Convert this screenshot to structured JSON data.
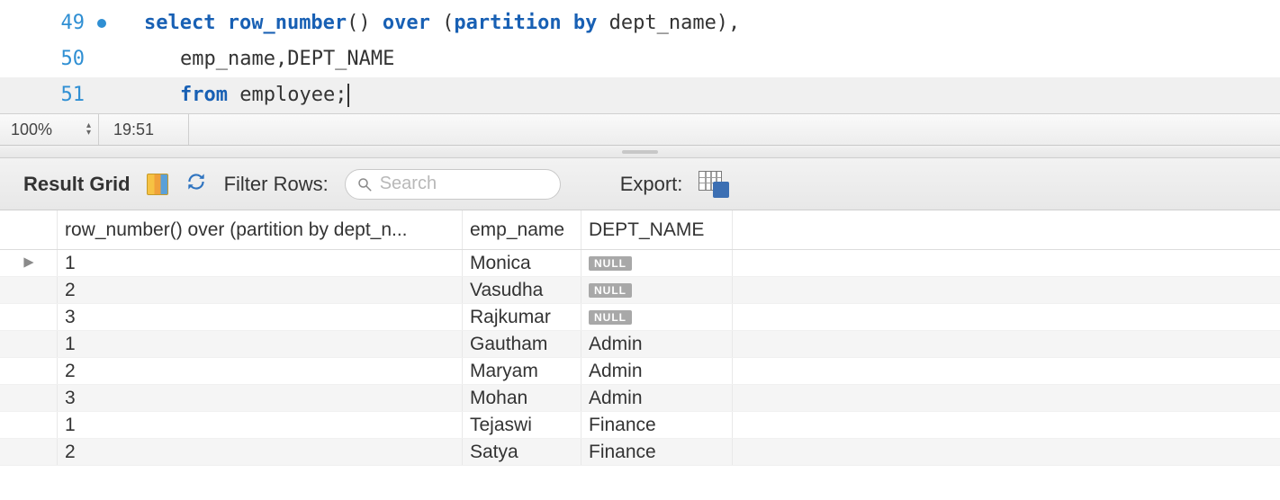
{
  "editor": {
    "lines": [
      {
        "num": 49,
        "breakpoint": true,
        "highlight": false,
        "indent": 1,
        "tokens": [
          {
            "t": "select ",
            "c": "kw"
          },
          {
            "t": "row_number",
            "c": "func"
          },
          {
            "t": "() ",
            "c": ""
          },
          {
            "t": "over",
            "c": "kw"
          },
          {
            "t": " (",
            "c": ""
          },
          {
            "t": "partition by",
            "c": "kw"
          },
          {
            "t": " dept_name),",
            "c": ""
          }
        ]
      },
      {
        "num": 50,
        "breakpoint": false,
        "highlight": false,
        "indent": 2,
        "tokens": [
          {
            "t": "emp_name,DEPT_NAME",
            "c": ""
          }
        ]
      },
      {
        "num": 51,
        "breakpoint": false,
        "highlight": true,
        "indent": 2,
        "tokens": [
          {
            "t": "from",
            "c": "kw"
          },
          {
            "t": " employee;",
            "c": ""
          }
        ],
        "caret": true
      }
    ]
  },
  "statusbar": {
    "zoom": "100%",
    "cursor_pos": "19:51"
  },
  "toolbar": {
    "title": "Result Grid",
    "filter_label": "Filter Rows:",
    "search_placeholder": "Search",
    "export_label": "Export:"
  },
  "grid": {
    "columns": [
      "row_number() over (partition by dept_n...",
      "emp_name",
      "DEPT_NAME"
    ],
    "rows": [
      {
        "cursor": true,
        "cells": [
          "1",
          "Monica",
          null
        ]
      },
      {
        "cursor": false,
        "cells": [
          "2",
          "Vasudha",
          null
        ]
      },
      {
        "cursor": false,
        "cells": [
          "3",
          "Rajkumar",
          null
        ]
      },
      {
        "cursor": false,
        "cells": [
          "1",
          "Gautham",
          "Admin"
        ]
      },
      {
        "cursor": false,
        "cells": [
          "2",
          "Maryam",
          "Admin"
        ]
      },
      {
        "cursor": false,
        "cells": [
          "3",
          "Mohan",
          "Admin"
        ]
      },
      {
        "cursor": false,
        "cells": [
          "1",
          "Tejaswi",
          "Finance"
        ]
      },
      {
        "cursor": false,
        "cells": [
          "2",
          "Satya",
          "Finance"
        ]
      }
    ]
  }
}
